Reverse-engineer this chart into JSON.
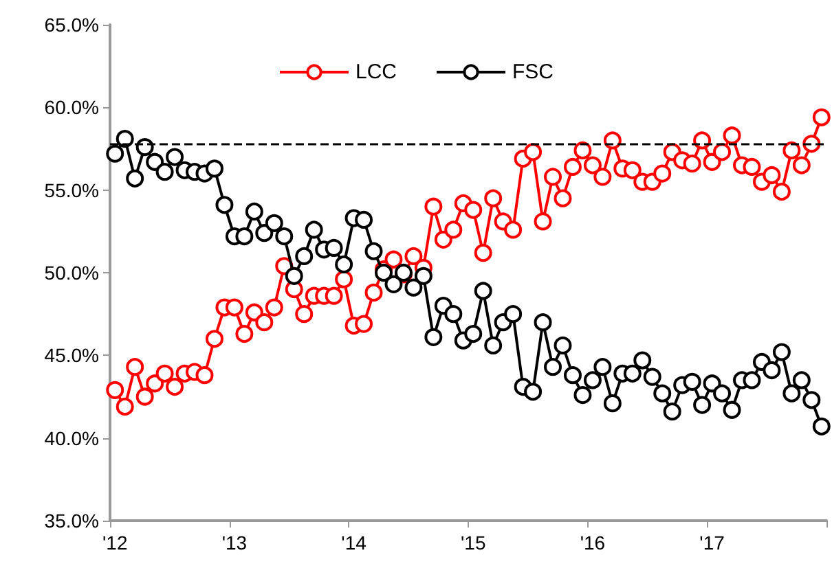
{
  "chart_data": {
    "type": "line",
    "categories": [
      "'12",
      null,
      null,
      null,
      null,
      null,
      null,
      null,
      null,
      null,
      null,
      null,
      "'13",
      null,
      null,
      null,
      null,
      null,
      null,
      null,
      null,
      null,
      null,
      null,
      "'14",
      null,
      null,
      null,
      null,
      null,
      null,
      null,
      null,
      null,
      null,
      null,
      "'15",
      null,
      null,
      null,
      null,
      null,
      null,
      null,
      null,
      null,
      null,
      null,
      "'16",
      null,
      null,
      null,
      null,
      null,
      null,
      null,
      null,
      null,
      null,
      null,
      "'17",
      null,
      null,
      null,
      null,
      null,
      null,
      null,
      null,
      null,
      null,
      null
    ],
    "series": [
      {
        "name": "LCC",
        "color": "#ff0000",
        "values": [
          42.9,
          41.9,
          44.3,
          42.5,
          43.3,
          43.9,
          43.1,
          43.9,
          44.0,
          43.8,
          46.0,
          47.9,
          47.9,
          46.3,
          47.6,
          47.0,
          47.9,
          50.4,
          49.0,
          47.5,
          48.6,
          48.6,
          48.6,
          49.6,
          46.8,
          46.9,
          48.8,
          50.2,
          50.8,
          49.9,
          51.0,
          50.3,
          54.0,
          52.0,
          52.6,
          54.2,
          53.8,
          51.2,
          54.5,
          53.1,
          52.6,
          56.9,
          57.3,
          53.1,
          55.8,
          54.5,
          56.4,
          57.4,
          56.5,
          55.8,
          58.0,
          56.3,
          56.2,
          55.5,
          55.5,
          56.0,
          57.3,
          56.8,
          56.6,
          58.0,
          56.7,
          57.3,
          58.3,
          56.5,
          56.4,
          55.5,
          55.9,
          54.9,
          57.4,
          56.5,
          57.8,
          59.4
        ]
      },
      {
        "name": "FSC",
        "color": "#000000",
        "values": [
          57.2,
          58.1,
          55.7,
          57.6,
          56.7,
          56.1,
          57.0,
          56.2,
          56.1,
          56.0,
          56.3,
          54.1,
          52.2,
          52.2,
          53.7,
          52.4,
          53.0,
          52.2,
          49.8,
          51.0,
          52.6,
          51.4,
          51.5,
          50.5,
          53.3,
          53.2,
          51.3,
          50.0,
          49.3,
          50.0,
          49.1,
          49.8,
          46.1,
          48.0,
          47.5,
          45.9,
          46.3,
          48.9,
          45.6,
          47.0,
          47.5,
          43.1,
          42.8,
          47.0,
          44.3,
          45.6,
          43.8,
          42.6,
          43.5,
          44.3,
          42.1,
          43.9,
          43.9,
          44.7,
          43.7,
          42.7,
          41.6,
          43.2,
          43.4,
          42.0,
          43.3,
          42.7,
          41.7,
          43.5,
          43.5,
          44.6,
          44.1,
          45.2,
          42.7,
          43.5,
          42.3,
          40.7
        ]
      }
    ],
    "ylim": [
      35,
      65
    ],
    "yticks": [
      {
        "value": 35,
        "label": "35.0%"
      },
      {
        "value": 40,
        "label": "40.0%"
      },
      {
        "value": 45,
        "label": "45.0%"
      },
      {
        "value": 50,
        "label": "50.0%"
      },
      {
        "value": 55,
        "label": "55.0%"
      },
      {
        "value": 60,
        "label": "60.0%"
      },
      {
        "value": 65,
        "label": "65.0%"
      }
    ],
    "ref_lines": [
      {
        "axis": "y",
        "value": 57.8,
        "color": "#000000",
        "line_style": "dashed"
      }
    ],
    "grid": false,
    "legend": "top",
    "marker": "circle",
    "line_style": "solid"
  }
}
